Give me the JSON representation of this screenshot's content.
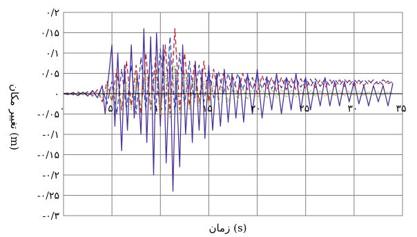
{
  "chart_data": {
    "type": "line",
    "xlabel": "زمان (s)",
    "ylabel": "تغییر مکان (m)",
    "xlim": [
      0,
      35
    ],
    "ylim": [
      -0.3,
      0.2
    ],
    "x_ticks": [
      0,
      5,
      10,
      15,
      20,
      25,
      30,
      35
    ],
    "x_tick_labels": [
      "۰",
      "۵",
      "۱۰",
      "۱۵",
      "۲۰",
      "۲۵",
      "۳۰",
      "۳۵"
    ],
    "y_ticks": [
      0.2,
      0.15,
      0.1,
      0.05,
      0,
      -0.05,
      -0.1,
      -0.15,
      -0.2,
      -0.25,
      -0.3
    ],
    "y_tick_labels": [
      "۰/۲",
      "۰/۱۵",
      "۰/۱",
      "۰/۰۵",
      "۰",
      "-۰/۰۵",
      "-۰/۱",
      "-۰/۱۵",
      "-۰/۲",
      "-۰/۲۵",
      "-۰/۳"
    ],
    "grid": true,
    "legend": "none",
    "series": [
      {
        "color": "#4b2fa0",
        "style": "solid",
        "x": [
          0,
          0.5,
          1,
          1.5,
          2,
          2.5,
          3,
          3.5,
          4,
          4.3,
          4.6,
          5,
          5.3,
          5.6,
          6,
          6.3,
          6.6,
          7,
          7.3,
          7.6,
          8,
          8.3,
          8.6,
          9,
          9.3,
          9.6,
          10,
          10.3,
          10.6,
          11,
          11.3,
          11.6,
          12,
          12.3,
          12.6,
          13,
          13.3,
          13.6,
          14,
          14.3,
          14.6,
          15,
          15.4,
          15.8,
          16.2,
          16.6,
          17,
          17.4,
          17.8,
          18.2,
          18.6,
          19,
          19.5,
          20,
          20.5,
          21,
          21.5,
          22,
          22.5,
          23,
          23.5,
          24,
          24.5,
          25,
          25.5,
          26,
          26.5,
          27,
          27.5,
          28,
          28.5,
          29,
          29.5,
          30,
          30.5,
          31,
          31.5,
          32,
          32.5,
          33,
          33.5,
          34
        ],
        "values": [
          0,
          -0.002,
          0.003,
          -0.005,
          0.004,
          -0.006,
          0.008,
          -0.01,
          0.02,
          -0.05,
          0.03,
          0.12,
          -0.08,
          0.1,
          -0.14,
          0.07,
          -0.09,
          0.12,
          -0.06,
          0.05,
          -0.1,
          0.16,
          -0.12,
          0.14,
          -0.2,
          0.15,
          -0.08,
          0.12,
          -0.17,
          0.09,
          -0.24,
          0.06,
          -0.18,
          0.12,
          -0.1,
          0.05,
          -0.12,
          0.08,
          -0.09,
          0.06,
          -0.11,
          0.07,
          -0.09,
          0.05,
          -0.08,
          0.06,
          -0.07,
          0.05,
          -0.06,
          0.04,
          -0.07,
          0.05,
          -0.05,
          0.06,
          -0.06,
          0.04,
          -0.04,
          0.05,
          -0.05,
          0.04,
          -0.04,
          0.05,
          -0.04,
          0.04,
          -0.04,
          0.03,
          -0.03,
          0.04,
          -0.03,
          0.03,
          -0.03,
          0.03,
          -0.02,
          0.03,
          -0.025,
          0.02,
          -0.03,
          0.02,
          -0.02,
          0.02,
          -0.03,
          0.025
        ]
      },
      {
        "color": "#c0172a",
        "style": "dashed",
        "x": [
          0,
          0.5,
          1,
          1.5,
          2,
          2.5,
          3,
          3.5,
          4,
          4.5,
          5,
          5.5,
          6,
          6.5,
          7,
          7.5,
          8,
          8.5,
          9,
          9.5,
          10,
          10.5,
          11,
          11.5,
          12,
          12.5,
          13,
          13.5,
          14,
          14.5,
          15,
          15.5,
          16,
          16.5,
          17,
          17.5,
          18,
          18.5,
          19,
          19.5,
          20,
          20.5,
          21,
          21.5,
          22,
          22.5,
          23,
          23.5,
          24,
          24.5,
          25,
          25.5,
          26,
          26.5,
          27,
          27.5,
          28,
          28.5,
          29,
          29.5,
          30,
          30.5,
          31,
          31.5,
          32,
          32.5,
          33,
          33.5,
          34
        ],
        "values": [
          0,
          0.002,
          -0.003,
          0.004,
          -0.003,
          0.005,
          -0.006,
          0.01,
          -0.02,
          0.03,
          -0.02,
          0.06,
          -0.04,
          0.08,
          -0.03,
          0.07,
          -0.05,
          0.1,
          -0.04,
          0.09,
          -0.06,
          0.12,
          -0.05,
          0.16,
          -0.04,
          0.1,
          -0.03,
          0.07,
          -0.02,
          0.08,
          -0.02,
          0.06,
          0.0,
          0.05,
          0.01,
          0.04,
          0.0,
          0.05,
          0.01,
          0.04,
          0.0,
          0.045,
          0.01,
          0.04,
          0.005,
          0.04,
          0.01,
          0.038,
          0.01,
          0.037,
          0.012,
          0.036,
          0.015,
          0.035,
          0.015,
          0.034,
          0.018,
          0.034,
          0.018,
          0.033,
          0.02,
          0.033,
          0.02,
          0.032,
          0.022,
          0.032,
          0.022,
          0.031,
          0.025
        ]
      },
      {
        "color": "#2e3fc0",
        "style": "dashed",
        "x": [
          0,
          0.5,
          1,
          1.5,
          2,
          2.5,
          3,
          3.5,
          4,
          4.5,
          5,
          5.5,
          6,
          6.5,
          7,
          7.5,
          8,
          8.5,
          9,
          9.5,
          10,
          10.5,
          11,
          11.5,
          12,
          12.5,
          13,
          13.5,
          14,
          14.5,
          15,
          15.5,
          16,
          16.5,
          17,
          17.5,
          18,
          18.5,
          19,
          19.5,
          20,
          20.5,
          21,
          21.5,
          22,
          22.5,
          23,
          23.5,
          24,
          24.5,
          25,
          25.5,
          26,
          26.5,
          27,
          27.5,
          28,
          28.5,
          29,
          29.5,
          30,
          30.5,
          31,
          31.5,
          32,
          32.5,
          33,
          33.5,
          34
        ],
        "values": [
          0,
          -0.002,
          0.003,
          -0.004,
          0.004,
          -0.005,
          0.006,
          -0.01,
          0.015,
          -0.025,
          0.03,
          -0.05,
          0.06,
          -0.04,
          0.07,
          -0.05,
          0.09,
          -0.04,
          0.1,
          -0.05,
          0.11,
          -0.04,
          0.14,
          -0.05,
          0.1,
          -0.03,
          0.08,
          -0.02,
          0.07,
          -0.02,
          0.06,
          -0.01,
          0.055,
          0.0,
          0.05,
          0.005,
          0.05,
          0.01,
          0.045,
          0.01,
          0.045,
          0.012,
          0.042,
          0.012,
          0.04,
          0.014,
          0.04,
          0.015,
          0.039,
          0.016,
          0.038,
          0.017,
          0.037,
          0.018,
          0.037,
          0.019,
          0.036,
          0.02,
          0.036,
          0.021,
          0.035,
          0.022,
          0.035,
          0.023,
          0.034,
          0.024,
          0.034,
          0.025,
          0.03
        ]
      },
      {
        "color": "#9ab23a",
        "style": "dotted",
        "x": [
          0,
          0.5,
          1,
          1.5,
          2,
          2.5,
          3,
          3.5,
          4,
          4.5,
          5,
          5.5,
          6,
          6.5,
          7,
          7.5,
          8,
          8.5,
          9,
          9.5,
          10,
          10.5,
          11,
          11.5,
          12,
          12.5,
          13,
          13.5,
          14,
          14.5,
          15,
          15.5,
          16,
          16.5,
          17,
          17.5,
          18,
          18.5,
          19,
          19.5,
          20,
          20.5,
          21,
          21.5,
          22,
          22.5,
          23,
          23.5,
          24,
          24.5,
          25,
          25.5,
          26,
          26.5,
          27,
          27.5,
          28,
          28.5,
          29,
          29.5,
          30,
          30.5,
          31,
          31.5,
          32,
          32.5,
          33,
          33.5,
          34
        ],
        "values": [
          0,
          0.001,
          -0.002,
          0.002,
          -0.003,
          0.003,
          -0.004,
          0.005,
          -0.01,
          0.015,
          -0.02,
          0.02,
          -0.03,
          0.03,
          -0.04,
          0.04,
          -0.035,
          0.05,
          -0.04,
          0.06,
          -0.05,
          0.05,
          -0.06,
          0.07,
          -0.05,
          0.05,
          -0.04,
          0.04,
          -0.03,
          0.03,
          -0.025,
          0.025,
          -0.02,
          0.02,
          -0.02,
          0.018,
          -0.015,
          0.015,
          -0.014,
          0.013,
          -0.012,
          0.012,
          -0.01,
          0.011,
          -0.01,
          0.01,
          -0.009,
          0.009,
          -0.008,
          0.009,
          -0.008,
          0.008,
          -0.007,
          0.008,
          -0.007,
          0.007,
          -0.006,
          0.007,
          -0.006,
          0.006,
          -0.005,
          0.006,
          -0.005,
          0.005,
          -0.004,
          0.005,
          -0.004,
          0.004,
          0.0
        ]
      }
    ]
  }
}
